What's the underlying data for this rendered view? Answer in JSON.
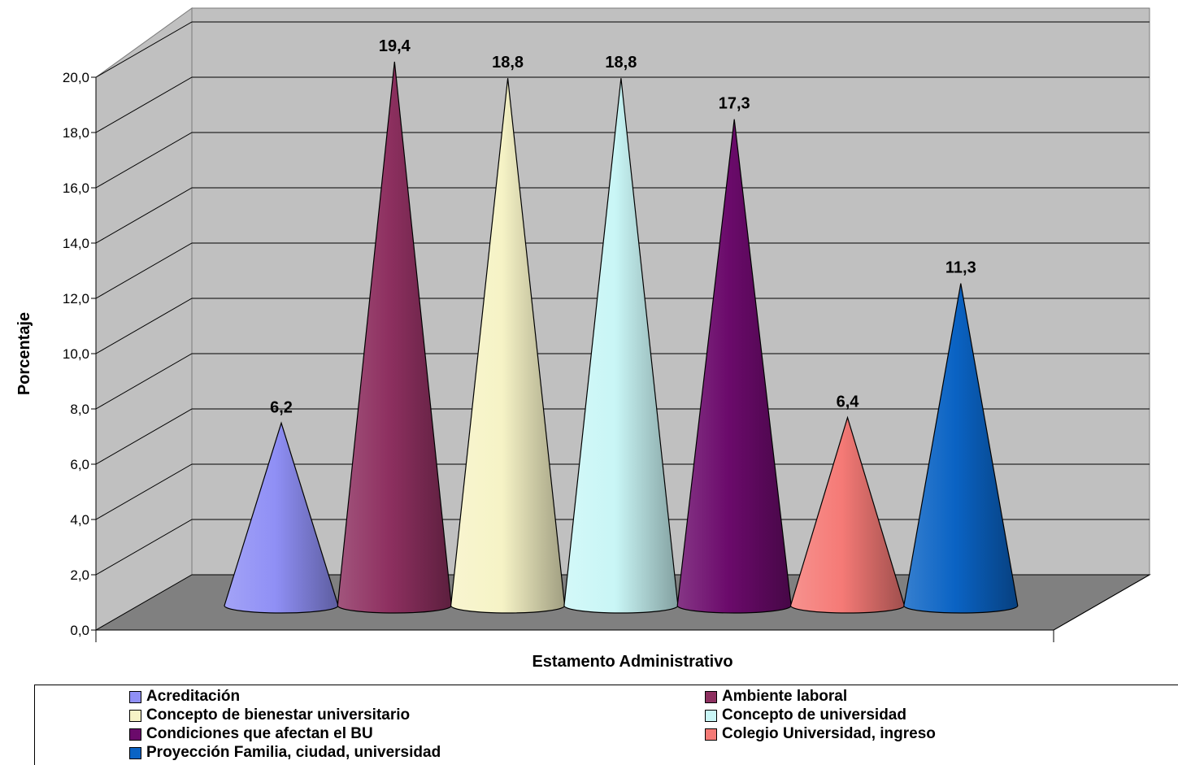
{
  "chart_data": {
    "type": "bar",
    "shape": "cone-3d",
    "title": "",
    "xlabel": "Estamento Administrativo",
    "ylabel": "Porcentaje",
    "ylim": [
      0,
      20
    ],
    "yticks": [
      "0,0",
      "2,0",
      "4,0",
      "6,0",
      "8,0",
      "10,0",
      "12,0",
      "14,0",
      "16,0",
      "18,0",
      "20,0"
    ],
    "grid": true,
    "legend_position": "bottom",
    "series": [
      {
        "name": "Acreditación",
        "value": 6.2,
        "label": "6,2",
        "color": "#8f8ff5"
      },
      {
        "name": "Ambiente laboral",
        "value": 19.4,
        "label": "19,4",
        "color": "#8e3060"
      },
      {
        "name": "Concepto de bienestar universitario",
        "value": 18.8,
        "label": "18,8",
        "color": "#f6f3c6"
      },
      {
        "name": "Concepto de universidad",
        "value": 18.8,
        "label": "18,8",
        "color": "#c9f6f6"
      },
      {
        "name": "Condiciones que afectan el BU",
        "value": 17.3,
        "label": "17,3",
        "color": "#6b0a6b"
      },
      {
        "name": "Colegio Universidad, ingreso",
        "value": 6.4,
        "label": "6,4",
        "color": "#f57a76"
      },
      {
        "name": "Proyección Familia, ciudad, universidad",
        "value": 11.3,
        "label": "11,3",
        "color": "#0a63c4"
      }
    ]
  }
}
